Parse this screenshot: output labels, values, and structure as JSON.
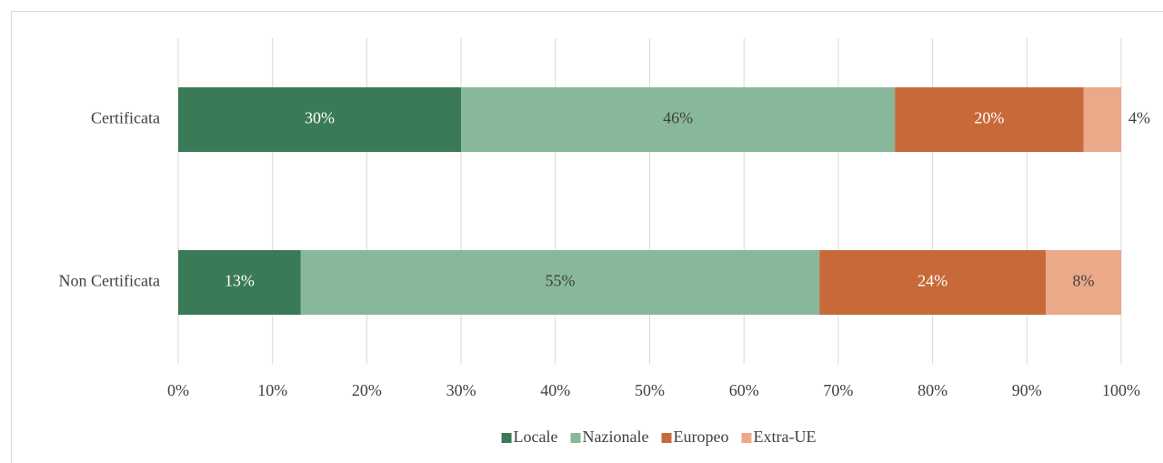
{
  "chart_data": {
    "type": "stacked-barh",
    "categories": [
      "Certificata",
      "Non Certificata"
    ],
    "series": [
      {
        "name": "Locale",
        "color": "#3a7a57",
        "values": [
          30,
          13
        ],
        "value_labels": [
          "30%",
          "13%"
        ]
      },
      {
        "name": "Nazionale",
        "color": "#88b89a",
        "values": [
          46,
          55
        ],
        "value_labels": [
          "46%",
          "55%"
        ]
      },
      {
        "name": "Europeo",
        "color": "#c8693a",
        "values": [
          20,
          24
        ],
        "value_labels": [
          "20%",
          "24%"
        ]
      },
      {
        "name": "Extra-UE",
        "color": "#eba98a",
        "values": [
          4,
          8
        ],
        "value_labels": [
          "4%",
          "8%"
        ]
      }
    ],
    "xlim": [
      0,
      100
    ],
    "xticks": [
      {
        "value": 0,
        "label": "0%"
      },
      {
        "value": 10,
        "label": "10%"
      },
      {
        "value": 20,
        "label": "20%"
      },
      {
        "value": 30,
        "label": "30%"
      },
      {
        "value": 40,
        "label": "40%"
      },
      {
        "value": 50,
        "label": "50%"
      },
      {
        "value": 60,
        "label": "60%"
      },
      {
        "value": 70,
        "label": "70%"
      },
      {
        "value": 80,
        "label": "80%"
      },
      {
        "value": 90,
        "label": "90%"
      },
      {
        "value": 100,
        "label": "100%"
      }
    ],
    "grid": true,
    "legend": "bottom"
  }
}
